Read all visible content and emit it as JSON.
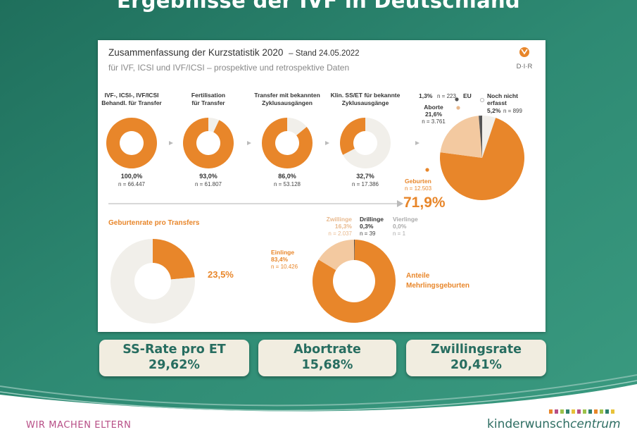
{
  "slide": {
    "title": "Ergebnisse der IVF in Deutschland",
    "kpis": [
      {
        "label": "SS-Rate pro ET",
        "value": "29,62%"
      },
      {
        "label": "Abortrate",
        "value": "15,68%"
      },
      {
        "label": "Zwillingsrate",
        "value": "20,41%"
      }
    ],
    "slogan": "WIR MACHEN ELTERN",
    "brand": {
      "part1": "kinderwunsch",
      "part2": "centrum"
    },
    "colors": {
      "teal": "#2c7f6c",
      "orange": "#e8862a",
      "light_orange": "#f3c9a0",
      "beige": "#f1efea",
      "dark_gray": "#555555",
      "kpi_text": "#276d60"
    }
  },
  "panel": {
    "title": "Zusammenfassung der Kurzstatistik 2020",
    "title_suffix": "– Stand 24.05.2022",
    "subtitle": "für IVF, ICSI und IVF/ICSI – prospektive und retrospektive Daten",
    "logo_text": "D·I·R"
  },
  "chart_data": [
    {
      "type": "pie",
      "title": "",
      "funnel": [
        {
          "label_line1": "IVF-, ICSI-, IVF/ICSI",
          "label_line2": "Behandl. für Transfer",
          "percent_label": "100,0%",
          "percent": 100.0,
          "n_label": "n = 66.447"
        },
        {
          "label_line1": "Fertilisation",
          "label_line2": "für Transfer",
          "percent_label": "93,0%",
          "percent": 93.0,
          "n_label": "n = 61.807"
        },
        {
          "label_line1": "Transfer mit bekannten",
          "label_line2": "Zyklusausgängen",
          "percent_label": "86,0%",
          "percent": 86.0,
          "n_label": "n = 53.128"
        },
        {
          "label_line1": "Klin. SS/ET für bekannte",
          "label_line2": "Zyklusausgänge",
          "percent_label": "32,7%",
          "percent": 32.7,
          "n_label": "n = 17.386"
        }
      ]
    },
    {
      "type": "pie",
      "title": "",
      "slices": [
        {
          "name": "Geburten",
          "percent": 71.9,
          "percent_label": "71,9%",
          "n_label": "n = 12.503"
        },
        {
          "name": "Aborte",
          "percent": 21.6,
          "percent_label": "21,6%",
          "n_label": "n = 3.761"
        },
        {
          "name": "EU",
          "percent": 1.3,
          "percent_label": "1,3%",
          "n_label": "n = 223"
        },
        {
          "name": "Noch nicht erfasst",
          "name_line1": "Noch nicht",
          "name_line2": "erfasst",
          "percent": 5.2,
          "percent_label": "5,2%",
          "n_label": "n = 899"
        }
      ]
    },
    {
      "type": "pie",
      "title": "Geburtenrate pro Transfers",
      "slices": [
        {
          "name": "Geburten",
          "percent": 23.5,
          "percent_label": "23,5%"
        }
      ]
    },
    {
      "type": "pie",
      "title": "Anteile Mehrlingsgeburten",
      "title_line1": "Anteile",
      "title_line2": "Mehrlingsgeburten",
      "slices": [
        {
          "name": "Einlinge",
          "percent": 83.4,
          "percent_label": "83,4%",
          "n_label": "n = 10.426"
        },
        {
          "name": "Zwillinge",
          "percent": 16.3,
          "percent_label": "16,3%",
          "n_label": "n = 2.037"
        },
        {
          "name": "Drillinge",
          "percent": 0.3,
          "percent_label": "0,3%",
          "n_label": "n = 39"
        },
        {
          "name": "Vierlinge",
          "percent": 0.0,
          "percent_label": "0,0%",
          "n_label": "n = 1"
        }
      ]
    }
  ]
}
